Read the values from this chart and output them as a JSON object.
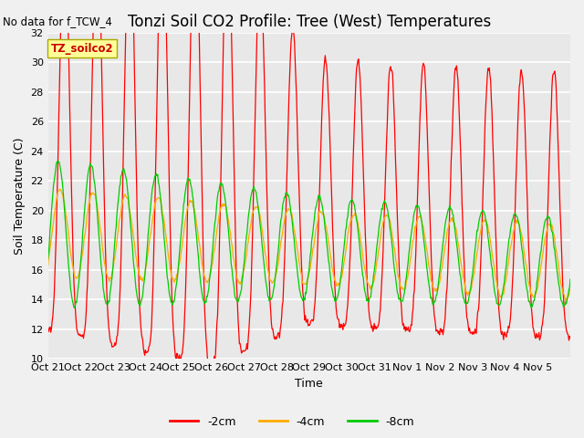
{
  "title": "Tonzi Soil CO2 Profile: Tree (West) Temperatures",
  "no_data_label": "No data for f_TCW_4",
  "xlabel": "Time",
  "ylabel": "Soil Temperature (C)",
  "ylim": [
    10,
    32
  ],
  "yticks": [
    10,
    12,
    14,
    16,
    18,
    20,
    22,
    24,
    26,
    28,
    30,
    32
  ],
  "xtick_labels": [
    "Oct 21",
    "Oct 22",
    "Oct 23",
    "Oct 24",
    "Oct 25",
    "Oct 26",
    "Oct 27",
    "Oct 28",
    "Oct 29",
    "Oct 30",
    "Oct 31",
    "Nov 1",
    "Nov 2",
    "Nov 3",
    "Nov 4",
    "Nov 5"
  ],
  "inner_box_label": "TZ_soilco2",
  "inner_box_color": "#ffff99",
  "inner_box_text_color": "#cc0000",
  "line_colors": {
    "2cm": "#ff0000",
    "4cm": "#ffaa00",
    "8cm": "#00cc00"
  },
  "legend_labels": [
    "-2cm",
    "-4cm",
    "-8cm"
  ],
  "fig_bg_color": "#f0f0f0",
  "plot_bg_color": "#e8e8e8",
  "grid_color": "#ffffff",
  "title_fontsize": 12,
  "axis_fontsize": 9,
  "tick_fontsize": 8
}
